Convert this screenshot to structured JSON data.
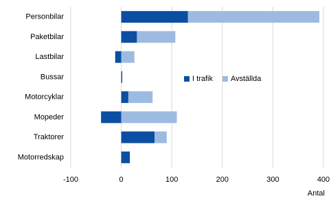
{
  "chart_data": {
    "type": "bar",
    "orientation": "horizontal",
    "stacked": true,
    "categories": [
      "Personbilar",
      "Paketbilar",
      "Lastbilar",
      "Bussar",
      "Motorcyklar",
      "Mopeder",
      "Traktorer",
      "Motorredskap"
    ],
    "series": [
      {
        "name": "I trafik",
        "color": "#0b4ea2",
        "values": [
          132,
          31,
          -12,
          2,
          14,
          -40,
          66,
          17
        ]
      },
      {
        "name": "Avställda",
        "color": "#9dbbe0",
        "values": [
          260,
          76,
          26,
          0,
          48,
          110,
          24,
          0
        ]
      }
    ],
    "xlabel": "Antal",
    "xlim": [
      -100,
      400
    ],
    "xticks": [
      -100,
      0,
      100,
      200,
      300,
      400
    ],
    "grid": true,
    "legend": "center"
  }
}
